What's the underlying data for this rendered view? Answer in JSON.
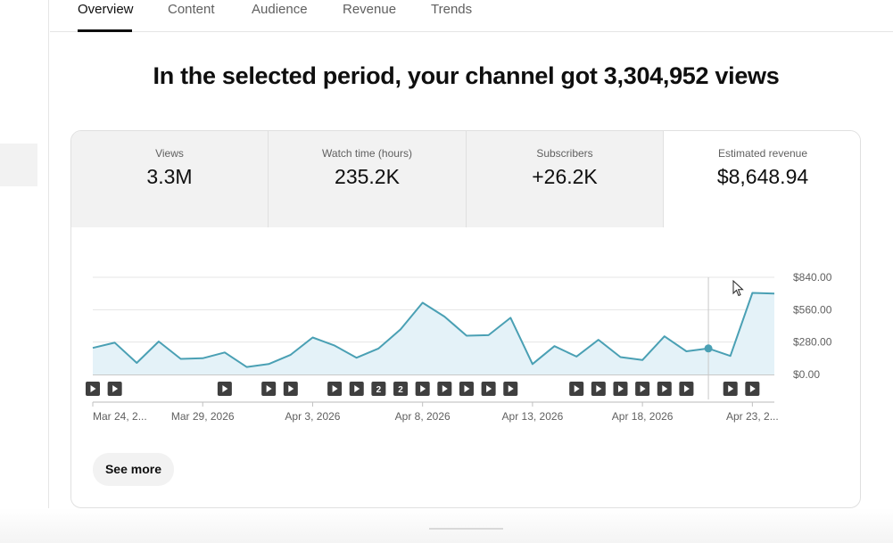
{
  "tabs": [
    {
      "label": "Overview",
      "active": true
    },
    {
      "label": "Content",
      "active": false
    },
    {
      "label": "Audience",
      "active": false
    },
    {
      "label": "Revenue",
      "active": false
    },
    {
      "label": "Trends",
      "active": false
    }
  ],
  "headline": "In the selected period, your channel got 3,304,952 views",
  "metrics": [
    {
      "label": "Views",
      "value": "3.3M",
      "selected": false
    },
    {
      "label": "Watch time (hours)",
      "value": "235.2K",
      "selected": false
    },
    {
      "label": "Subscribers",
      "value": "+26.2K",
      "selected": false
    },
    {
      "label": "Estimated revenue",
      "value": "$8,648.94",
      "selected": true
    }
  ],
  "see_more_label": "See more",
  "colors": {
    "line": "#4aa0b4",
    "area": "#e4f2f8",
    "accent": "#0f0f0f"
  },
  "chart_data": {
    "type": "area",
    "series": [
      {
        "x": [
          "Mar 24, 2026",
          "Mar 25, 2026",
          "Mar 26, 2026",
          "Mar 27, 2026",
          "Mar 28, 2026",
          "Mar 29, 2026",
          "Mar 30, 2026",
          "Mar 31, 2026",
          "Apr 1, 2026",
          "Apr 2, 2026",
          "Apr 3, 2026",
          "Apr 4, 2026",
          "Apr 5, 2026",
          "Apr 6, 2026",
          "Apr 7, 2026",
          "Apr 8, 2026",
          "Apr 9, 2026",
          "Apr 10, 2026",
          "Apr 11, 2026",
          "Apr 12, 2026",
          "Apr 13, 2026",
          "Apr 14, 2026",
          "Apr 15, 2026",
          "Apr 16, 2026",
          "Apr 17, 2026",
          "Apr 18, 2026",
          "Apr 19, 2026",
          "Apr 20, 2026",
          "Apr 21, 2026",
          "Apr 22, 2026",
          "Apr 23, 2026",
          "Apr 24, 2026"
        ],
        "values": [
          230,
          275,
          100,
          285,
          135,
          140,
          190,
          65,
          90,
          170,
          320,
          250,
          145,
          225,
          390,
          620,
          500,
          335,
          340,
          490,
          90,
          245,
          155,
          300,
          150,
          125,
          330,
          200,
          225,
          160,
          705,
          700
        ]
      }
    ],
    "x_tick_labels": [
      "Mar 24, 2...",
      "Mar 29, 2026",
      "Apr 3, 2026",
      "Apr 8, 2026",
      "Apr 13, 2026",
      "Apr 18, 2026",
      "Apr 23, 2..."
    ],
    "y_tick_labels": [
      "$840.00",
      "$560.00",
      "$280.00",
      "$0.00"
    ],
    "ylim": [
      0,
      840
    ],
    "y_axis_position": "right",
    "grid": true,
    "hover_index": 28,
    "video_markers": [
      {
        "date": "Mar 24, 2026",
        "label": "play"
      },
      {
        "date": "Mar 25, 2026",
        "label": "play"
      },
      {
        "date": "Mar 30, 2026",
        "label": "play"
      },
      {
        "date": "Apr 1, 2026",
        "label": "play"
      },
      {
        "date": "Apr 2, 2026",
        "label": "play"
      },
      {
        "date": "Apr 4, 2026",
        "label": "play"
      },
      {
        "date": "Apr 5, 2026",
        "label": "play"
      },
      {
        "date": "Apr 6, 2026",
        "label": "2"
      },
      {
        "date": "Apr 7, 2026",
        "label": "2"
      },
      {
        "date": "Apr 8, 2026",
        "label": "play"
      },
      {
        "date": "Apr 9, 2026",
        "label": "play"
      },
      {
        "date": "Apr 10, 2026",
        "label": "play"
      },
      {
        "date": "Apr 11, 2026",
        "label": "play"
      },
      {
        "date": "Apr 12, 2026",
        "label": "play"
      },
      {
        "date": "Apr 15, 2026",
        "label": "play"
      },
      {
        "date": "Apr 16, 2026",
        "label": "play"
      },
      {
        "date": "Apr 17, 2026",
        "label": "play"
      },
      {
        "date": "Apr 18, 2026",
        "label": "play"
      },
      {
        "date": "Apr 19, 2026",
        "label": "play"
      },
      {
        "date": "Apr 20, 2026",
        "label": "play"
      },
      {
        "date": "Apr 22, 2026",
        "label": "play"
      },
      {
        "date": "Apr 23, 2026",
        "label": "play"
      }
    ]
  }
}
